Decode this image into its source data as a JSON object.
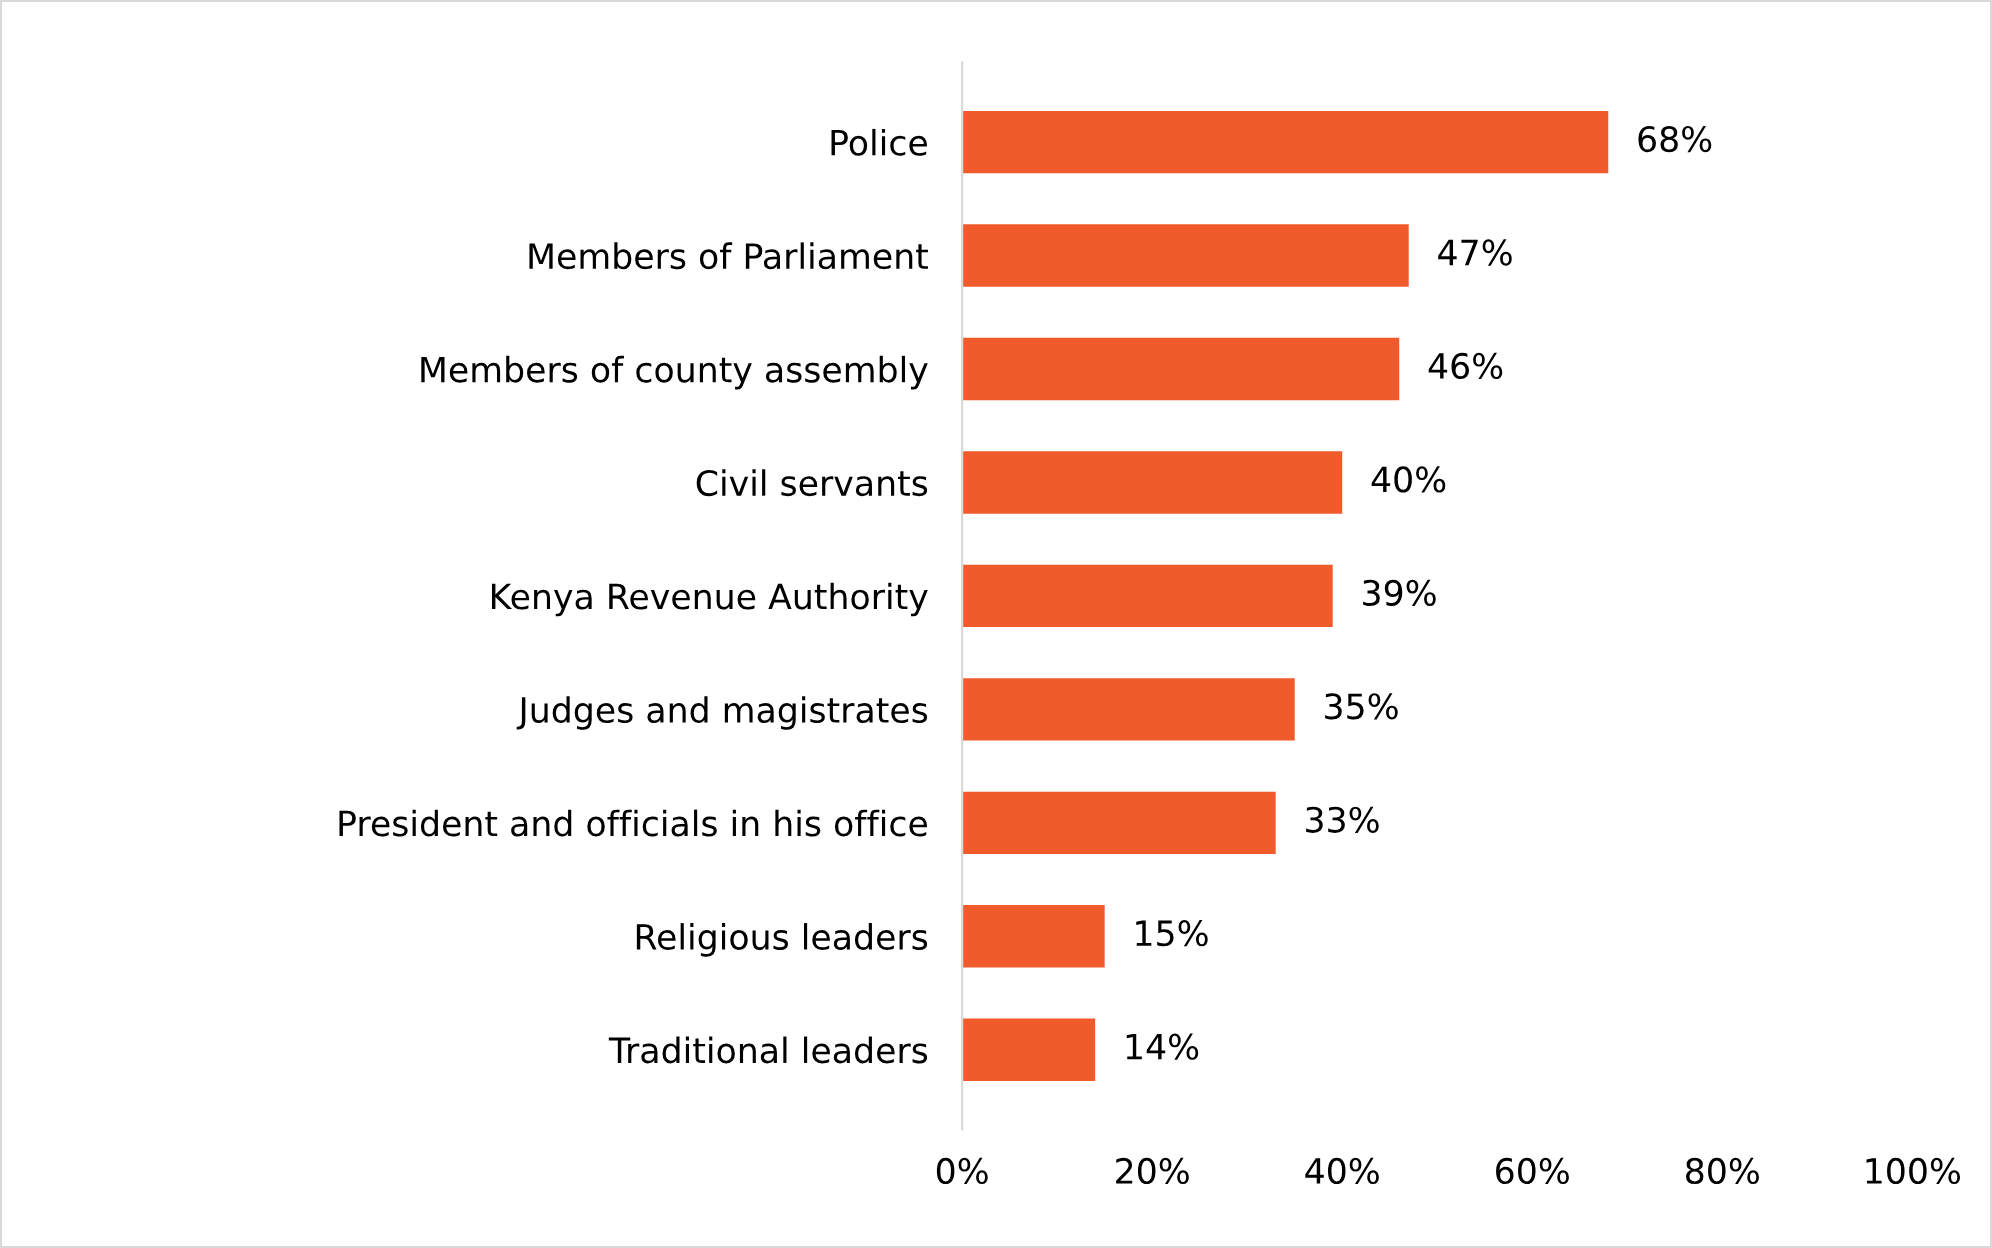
{
  "chart_data": {
    "type": "bar",
    "orientation": "horizontal",
    "categories": [
      "Police",
      "Members of Parliament",
      "Members of county assembly",
      "Civil servants",
      "Kenya Revenue Authority",
      "Judges and magistrates",
      "President and officials in his office",
      "Religious leaders",
      "Traditional leaders"
    ],
    "values": [
      68,
      47,
      46,
      40,
      39,
      35,
      33,
      15,
      14
    ],
    "value_labels": [
      "68%",
      "47%",
      "46%",
      "40%",
      "39%",
      "35%",
      "33%",
      "15%",
      "14%"
    ],
    "color": "#f15a2b",
    "xlim": [
      0,
      100
    ],
    "xticks": [
      {
        "value": 0,
        "label": "0%"
      },
      {
        "value": 20,
        "label": "20%"
      },
      {
        "value": 40,
        "label": "40%"
      },
      {
        "value": 60,
        "label": "60%"
      },
      {
        "value": 80,
        "label": "80%"
      },
      {
        "value": 100,
        "label": "100%"
      }
    ],
    "grid": false,
    "legend": false
  }
}
